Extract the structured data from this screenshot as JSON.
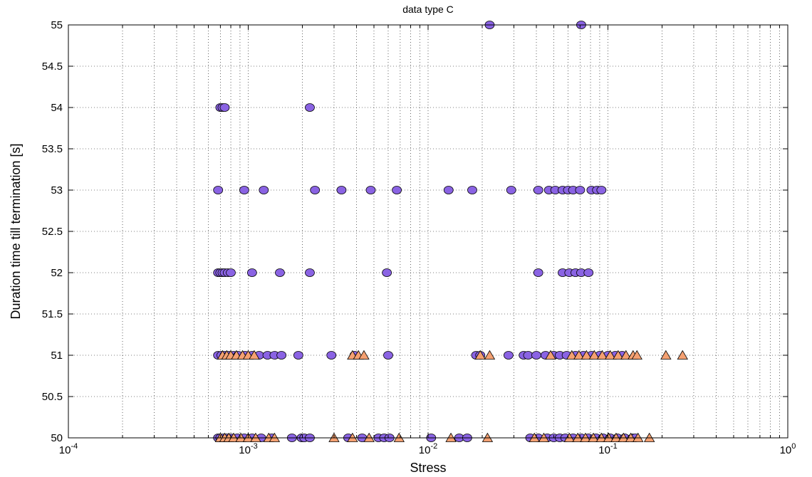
{
  "chart_data": {
    "type": "scatter",
    "title": "data type C",
    "xlabel": "Stress",
    "ylabel": "Duration time till termination [s]",
    "xscale": "log",
    "xlim": [
      0.0001,
      1
    ],
    "ylim": [
      50,
      55
    ],
    "grid": true,
    "x_ticks": [
      {
        "value": 0.0001,
        "base": "10",
        "exp": "-4"
      },
      {
        "value": 0.001,
        "base": "10",
        "exp": "-3"
      },
      {
        "value": 0.01,
        "base": "10",
        "exp": "-2"
      },
      {
        "value": 0.1,
        "base": "10",
        "exp": "-1"
      },
      {
        "value": 1,
        "base": "10",
        "exp": "0"
      }
    ],
    "y_ticks": [
      {
        "value": 50,
        "label": "50"
      },
      {
        "value": 50.5,
        "label": "50.5"
      },
      {
        "value": 51,
        "label": "51"
      },
      {
        "value": 51.5,
        "label": "51.5"
      },
      {
        "value": 52,
        "label": "52"
      },
      {
        "value": 52.5,
        "label": "52.5"
      },
      {
        "value": 53,
        "label": "53"
      },
      {
        "value": 53.5,
        "label": "53.5"
      },
      {
        "value": 54,
        "label": "54"
      },
      {
        "value": 54.5,
        "label": "54.5"
      },
      {
        "value": 55,
        "label": "55"
      }
    ],
    "series": [
      {
        "marker": "circle",
        "color": "#8a63e3",
        "points": [
          [
            0.022,
            55
          ],
          [
            0.071,
            55
          ],
          [
            0.0007,
            54
          ],
          [
            0.00072,
            54
          ],
          [
            0.00074,
            54
          ],
          [
            0.0022,
            54
          ],
          [
            0.00068,
            53
          ],
          [
            0.00095,
            53
          ],
          [
            0.00122,
            53
          ],
          [
            0.00235,
            53
          ],
          [
            0.0033,
            53
          ],
          [
            0.0048,
            53
          ],
          [
            0.0067,
            53
          ],
          [
            0.013,
            53
          ],
          [
            0.0176,
            53
          ],
          [
            0.029,
            53
          ],
          [
            0.041,
            53
          ],
          [
            0.047,
            53
          ],
          [
            0.051,
            53
          ],
          [
            0.056,
            53
          ],
          [
            0.06,
            53
          ],
          [
            0.064,
            53
          ],
          [
            0.07,
            53
          ],
          [
            0.081,
            53
          ],
          [
            0.087,
            53
          ],
          [
            0.092,
            53
          ],
          [
            0.00068,
            52
          ],
          [
            0.0007,
            52
          ],
          [
            0.00072,
            52
          ],
          [
            0.00074,
            52
          ],
          [
            0.00077,
            52
          ],
          [
            0.0008,
            52
          ],
          [
            0.00105,
            52
          ],
          [
            0.0015,
            52
          ],
          [
            0.0022,
            52
          ],
          [
            0.0059,
            52
          ],
          [
            0.041,
            52
          ],
          [
            0.056,
            52
          ],
          [
            0.061,
            52
          ],
          [
            0.066,
            52
          ],
          [
            0.071,
            52
          ],
          [
            0.078,
            52
          ],
          [
            0.00068,
            51
          ],
          [
            0.00071,
            51
          ],
          [
            0.00074,
            51
          ],
          [
            0.00078,
            51
          ],
          [
            0.00083,
            51
          ],
          [
            0.00088,
            51
          ],
          [
            0.00096,
            51
          ],
          [
            0.00105,
            51
          ],
          [
            0.00115,
            51
          ],
          [
            0.00128,
            51
          ],
          [
            0.0014,
            51
          ],
          [
            0.00153,
            51
          ],
          [
            0.0019,
            51
          ],
          [
            0.0029,
            51
          ],
          [
            0.0039,
            51
          ],
          [
            0.006,
            51
          ],
          [
            0.0185,
            51
          ],
          [
            0.0195,
            51
          ],
          [
            0.028,
            51
          ],
          [
            0.034,
            51
          ],
          [
            0.036,
            51
          ],
          [
            0.04,
            51
          ],
          [
            0.045,
            51
          ],
          [
            0.05,
            51
          ],
          [
            0.054,
            51
          ],
          [
            0.059,
            51
          ],
          [
            0.066,
            51
          ],
          [
            0.073,
            51
          ],
          [
            0.081,
            51
          ],
          [
            0.09,
            51
          ],
          [
            0.1,
            51
          ],
          [
            0.11,
            51
          ],
          [
            0.12,
            51
          ],
          [
            0.00068,
            50
          ],
          [
            0.0007,
            50
          ],
          [
            0.00073,
            50
          ],
          [
            0.00076,
            50
          ],
          [
            0.0008,
            50
          ],
          [
            0.00087,
            50
          ],
          [
            0.00095,
            50
          ],
          [
            0.00105,
            50
          ],
          [
            0.00118,
            50
          ],
          [
            0.00135,
            50
          ],
          [
            0.00175,
            50
          ],
          [
            0.00198,
            50
          ],
          [
            0.00205,
            50
          ],
          [
            0.0022,
            50
          ],
          [
            0.0036,
            50
          ],
          [
            0.0043,
            50
          ],
          [
            0.0053,
            50
          ],
          [
            0.0057,
            50
          ],
          [
            0.0061,
            50
          ],
          [
            0.0104,
            50
          ],
          [
            0.0149,
            50
          ],
          [
            0.0165,
            50
          ],
          [
            0.037,
            50
          ],
          [
            0.041,
            50
          ],
          [
            0.046,
            50
          ],
          [
            0.05,
            50
          ],
          [
            0.054,
            50
          ],
          [
            0.058,
            50
          ],
          [
            0.064,
            50
          ],
          [
            0.071,
            50
          ],
          [
            0.078,
            50
          ],
          [
            0.086,
            50
          ],
          [
            0.094,
            50
          ],
          [
            0.103,
            50
          ],
          [
            0.113,
            50
          ],
          [
            0.124,
            50
          ],
          [
            0.137,
            50
          ],
          [
            0.142,
            50
          ]
        ]
      },
      {
        "marker": "triangle",
        "color": "#f4a071",
        "points": [
          [
            0.00072,
            51
          ],
          [
            0.00076,
            51
          ],
          [
            0.0008,
            51
          ],
          [
            0.00086,
            51
          ],
          [
            0.00093,
            51
          ],
          [
            0.001,
            51
          ],
          [
            0.00108,
            51
          ],
          [
            0.0038,
            51
          ],
          [
            0.0041,
            51
          ],
          [
            0.0044,
            51
          ],
          [
            0.0195,
            51
          ],
          [
            0.022,
            51
          ],
          [
            0.048,
            51
          ],
          [
            0.063,
            51
          ],
          [
            0.069,
            51
          ],
          [
            0.076,
            51
          ],
          [
            0.084,
            51
          ],
          [
            0.093,
            51
          ],
          [
            0.103,
            51
          ],
          [
            0.114,
            51
          ],
          [
            0.126,
            51
          ],
          [
            0.138,
            51
          ],
          [
            0.145,
            51
          ],
          [
            0.21,
            51
          ],
          [
            0.26,
            51
          ],
          [
            0.0007,
            50
          ],
          [
            0.00074,
            50
          ],
          [
            0.00078,
            50
          ],
          [
            0.00083,
            50
          ],
          [
            0.00091,
            50
          ],
          [
            0.001,
            50
          ],
          [
            0.0011,
            50
          ],
          [
            0.0013,
            50
          ],
          [
            0.0014,
            50
          ],
          [
            0.003,
            50
          ],
          [
            0.0038,
            50
          ],
          [
            0.0047,
            50
          ],
          [
            0.0069,
            50
          ],
          [
            0.0134,
            50
          ],
          [
            0.0214,
            50
          ],
          [
            0.039,
            50
          ],
          [
            0.044,
            50
          ],
          [
            0.061,
            50
          ],
          [
            0.068,
            50
          ],
          [
            0.075,
            50
          ],
          [
            0.083,
            50
          ],
          [
            0.092,
            50
          ],
          [
            0.101,
            50
          ],
          [
            0.111,
            50
          ],
          [
            0.122,
            50
          ],
          [
            0.134,
            50
          ],
          [
            0.147,
            50
          ],
          [
            0.17,
            50
          ]
        ]
      }
    ]
  }
}
